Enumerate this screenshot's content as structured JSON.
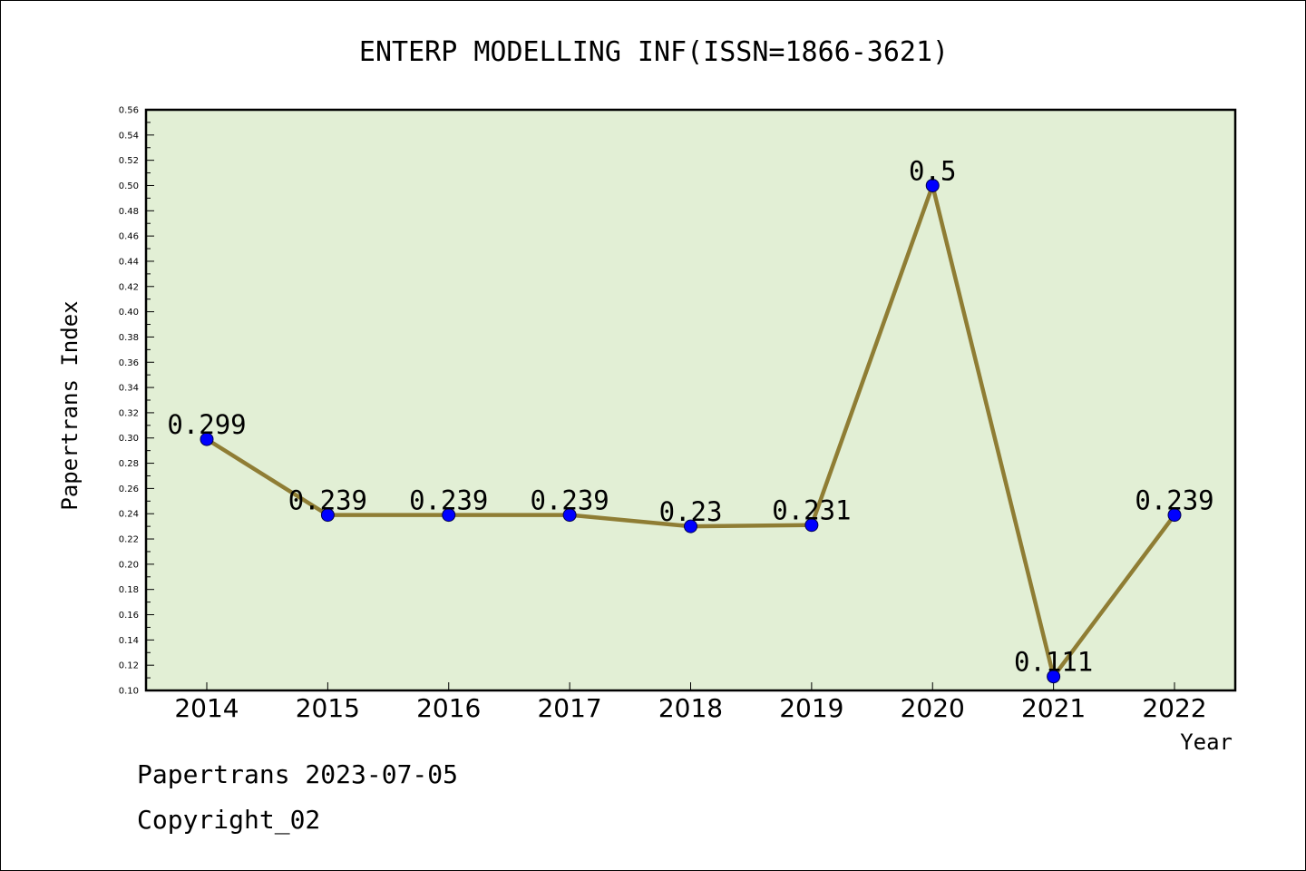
{
  "chart_data": {
    "type": "line",
    "title": "ENTERP MODELLING INF(ISSN=1866-3621)",
    "xlabel": "Year",
    "ylabel": "Papertrans Index",
    "categories": [
      "2014",
      "2015",
      "2016",
      "2017",
      "2018",
      "2019",
      "2020",
      "2021",
      "2022"
    ],
    "series": [
      {
        "values": [
          0.299,
          0.239,
          0.239,
          0.239,
          0.23,
          0.231,
          0.5,
          0.111,
          0.239
        ],
        "data_labels": [
          "0.299",
          "0.239",
          "0.239",
          "0.239",
          "0.23",
          "0.231",
          "0.5",
          "0.111",
          "0.239"
        ]
      }
    ],
    "ylim": [
      0.1,
      0.56
    ],
    "ytick_step": 0.02,
    "grid": false,
    "colors": {
      "plot_background": "#e2efd5",
      "line": "#8f7d34",
      "marker": "#0000ff",
      "frame": "#000000"
    }
  },
  "footer": {
    "line1": "Papertrans 2023-07-05",
    "line2": "Copyright_02"
  }
}
